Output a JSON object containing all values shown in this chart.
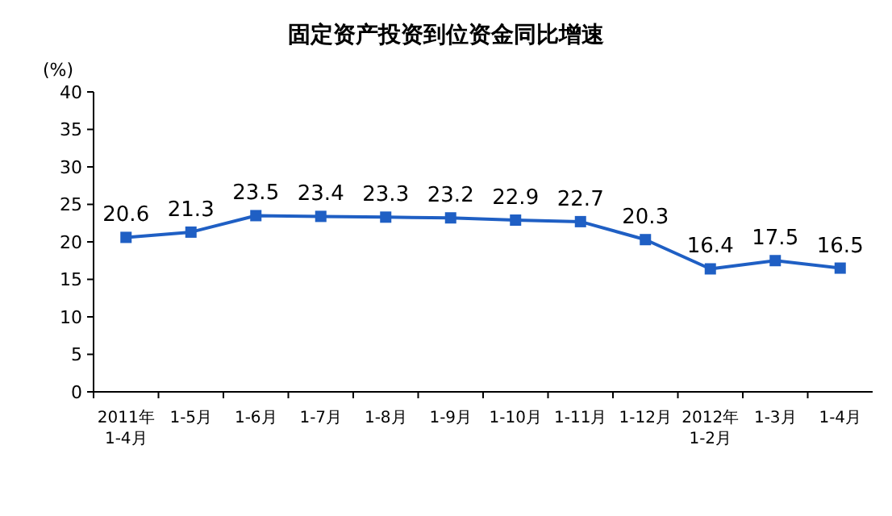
{
  "chart_data": {
    "type": "line",
    "title": "固定资产投资到位资金同比增速",
    "ylabel": "(%)",
    "categories": [
      "2011年\n1-4月",
      "1-5月",
      "1-6月",
      "1-7月",
      "1-8月",
      "1-9月",
      "1-10月",
      "1-11月",
      "1-12月",
      "2012年\n1-2月",
      "1-3月",
      "1-4月"
    ],
    "series": [
      {
        "color": "#1f5fc4",
        "values": [
          20.6,
          21.3,
          23.5,
          23.4,
          23.3,
          23.2,
          22.9,
          22.7,
          20.3,
          16.4,
          17.5,
          16.5
        ]
      }
    ],
    "ylim": [
      0,
      40
    ],
    "yticks": [
      0,
      5,
      10,
      15,
      20,
      25,
      30,
      35,
      40
    ],
    "marker": "square",
    "line_style": "solid",
    "data_labels": true
  }
}
